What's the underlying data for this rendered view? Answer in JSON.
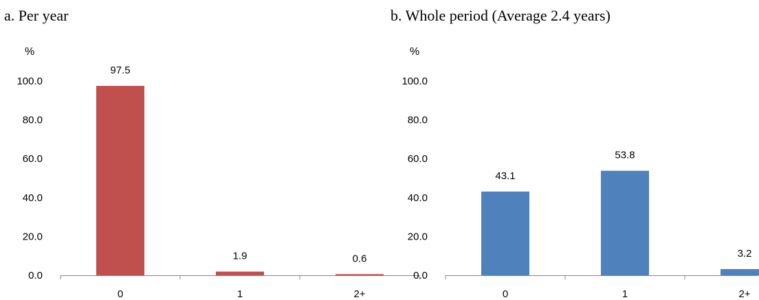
{
  "chart_data": [
    {
      "type": "bar",
      "title": "a. Per year",
      "ylabel": "%",
      "xlabel": "",
      "categories": [
        "0",
        "1",
        "2+"
      ],
      "values": [
        97.5,
        1.9,
        0.6
      ],
      "ylim": [
        0,
        100
      ],
      "yticks": [
        "0.0",
        "20.0",
        "40.0",
        "60.0",
        "80.0",
        "100.0"
      ],
      "data_labels": [
        "97.5",
        "1.9",
        "0.6"
      ],
      "color": "#C0504D",
      "grid": false,
      "legend": "none"
    },
    {
      "type": "bar",
      "title": "b. Whole period (Average 2.4 years)",
      "ylabel": "%",
      "xlabel": "",
      "categories": [
        "0",
        "1",
        "2+"
      ],
      "values": [
        43.1,
        53.8,
        3.2
      ],
      "ylim": [
        0,
        100
      ],
      "yticks": [
        "0.0",
        "20.0",
        "40.0",
        "60.0",
        "80.0",
        "100.0"
      ],
      "data_labels": [
        "43.1",
        "53.8",
        "3.2"
      ],
      "color": "#4F81BD",
      "grid": false,
      "legend": "none"
    }
  ]
}
